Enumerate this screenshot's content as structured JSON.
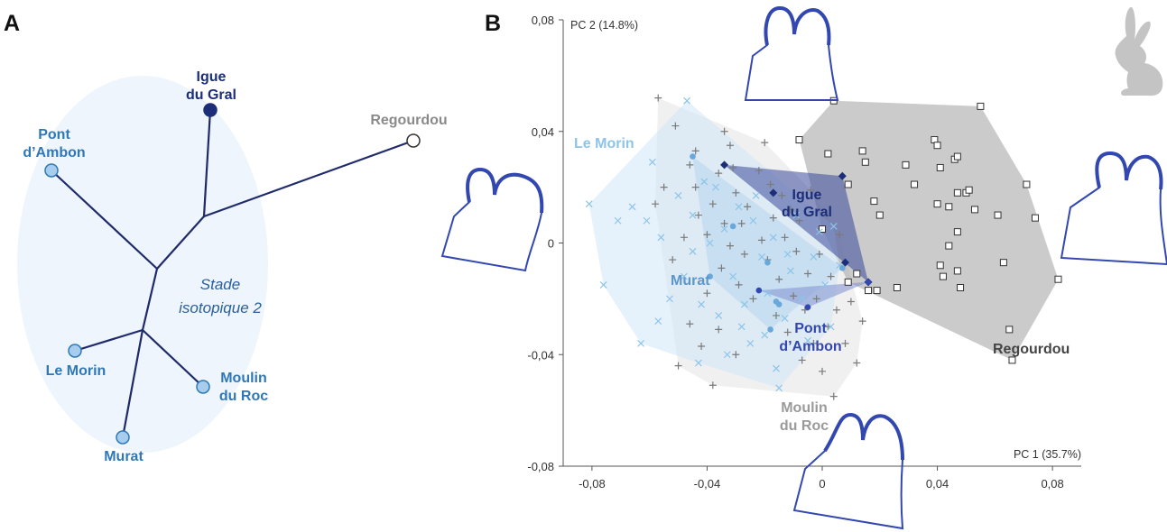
{
  "panel_a": {
    "letter": "A",
    "stage_note_line1": "Stade",
    "stage_note_line2": "isotopique 2",
    "sites": [
      {
        "id": "igue",
        "line1": "Igue",
        "line2": "du Gral",
        "color": "#1c2e78",
        "fill": "#1c2e78"
      },
      {
        "id": "regourdou",
        "line1": "Regourdou",
        "line2": "",
        "color": "#8a8a8a",
        "fill": "#ffffff"
      },
      {
        "id": "pont",
        "line1": "Pont",
        "line2": "d’Ambon",
        "color": "#2f78b8",
        "fill": "#a6cdee"
      },
      {
        "id": "lemorin",
        "line1": "Le Morin",
        "line2": "",
        "color": "#2f78b8",
        "fill": "#a6cdee"
      },
      {
        "id": "moulin",
        "line1": "Moulin",
        "line2": "du Roc",
        "color": "#2f78b8",
        "fill": "#a6cdee"
      },
      {
        "id": "murat",
        "line1": "Murat",
        "line2": "",
        "color": "#2f78b8",
        "fill": "#a6cdee"
      }
    ]
  },
  "panel_b": {
    "letter": "B",
    "icon": "rabbit-silhouette-icon",
    "labels": {
      "le_morin": "Le Morin",
      "igue_1": "Igue",
      "igue_2": "du Gral",
      "murat": "Murat",
      "pont_1": "Pont",
      "pont_2": "d’Ambon",
      "regourdou": "Regourdou",
      "moulin_1": "Moulin",
      "moulin_2": "du Roc"
    }
  },
  "colors": {
    "igue": "#1c2e78",
    "blue": "#2f78b8",
    "light_blue": "#8cc4ea",
    "gray": "#8a8a8a",
    "dark_gray": "#444444",
    "outline": "#3347b0"
  },
  "chart_data": {
    "type": "scatter",
    "title": "",
    "xlabel": "PC 1 (35.7%)",
    "ylabel": "PC 2 (14.8%)",
    "xlim": [
      -0.09,
      0.09
    ],
    "ylim": [
      -0.08,
      0.08
    ],
    "xticks": [
      -0.08,
      -0.04,
      0,
      0.04,
      0.08
    ],
    "xtick_labels": [
      "-0,08",
      "-0,04",
      "0",
      "0,04",
      "0,08"
    ],
    "yticks": [
      -0.08,
      -0.04,
      0,
      0.04,
      0.08
    ],
    "ytick_labels": [
      "-0,08",
      "-0,04",
      "0",
      "0,04",
      "0,08"
    ],
    "grid": false,
    "series": [
      {
        "name": "Regourdou",
        "marker": "square",
        "points": [
          [
            -0.008,
            0.037
          ],
          [
            0.002,
            0.032
          ],
          [
            0.004,
            0.051
          ],
          [
            0.009,
            0.021
          ],
          [
            0.014,
            0.033
          ],
          [
            0.015,
            0.029
          ],
          [
            0.018,
            0.015
          ],
          [
            0.02,
            0.01
          ],
          [
            0.029,
            0.028
          ],
          [
            0.032,
            0.021
          ],
          [
            0.039,
            0.037
          ],
          [
            0.04,
            0.035
          ],
          [
            0.04,
            0.014
          ],
          [
            0.041,
            0.027
          ],
          [
            0.044,
            0.013
          ],
          [
            0.044,
            -0.001
          ],
          [
            0.046,
            0.03
          ],
          [
            0.047,
            0.018
          ],
          [
            0.047,
            0.004
          ],
          [
            0.047,
            0.031
          ],
          [
            0.05,
            0.018
          ],
          [
            0.051,
            0.019
          ],
          [
            0.053,
            0.012
          ],
          [
            0.055,
            0.049
          ],
          [
            0.061,
            0.01
          ],
          [
            0.063,
            -0.007
          ],
          [
            0.065,
            -0.031
          ],
          [
            0.066,
            -0.042
          ],
          [
            0.071,
            0.021
          ],
          [
            0.074,
            0.009
          ],
          [
            0.082,
            -0.013
          ],
          [
            0.009,
            -0.014
          ],
          [
            0.012,
            -0.011
          ],
          [
            0.016,
            -0.017
          ],
          [
            0.019,
            -0.017
          ],
          [
            0.026,
            -0.016
          ],
          [
            0.041,
            -0.008
          ],
          [
            0.042,
            -0.012
          ],
          [
            0.047,
            -0.01
          ],
          [
            0.048,
            -0.016
          ],
          [
            0.0,
            0.005
          ]
        ]
      },
      {
        "name": "Moulin du Roc",
        "marker": "plus",
        "points": [
          [
            -0.057,
            0.052
          ],
          [
            -0.051,
            0.042
          ],
          [
            -0.046,
            0.028
          ],
          [
            -0.044,
            0.033
          ],
          [
            -0.043,
            0.01
          ],
          [
            -0.04,
            0.003
          ],
          [
            -0.038,
            0.014
          ],
          [
            -0.036,
            0.025
          ],
          [
            -0.035,
            -0.009
          ],
          [
            -0.034,
            0.04
          ],
          [
            -0.032,
            0.035
          ],
          [
            -0.031,
            0.027
          ],
          [
            -0.03,
            0.018
          ],
          [
            -0.029,
            -0.015
          ],
          [
            -0.028,
            0.007
          ],
          [
            -0.027,
            -0.004
          ],
          [
            -0.026,
            0.013
          ],
          [
            -0.024,
            -0.02
          ],
          [
            -0.022,
            0.026
          ],
          [
            -0.021,
            0.001
          ],
          [
            -0.02,
            0.036
          ],
          [
            -0.019,
            -0.006
          ],
          [
            -0.018,
            0.021
          ],
          [
            -0.017,
            0.009
          ],
          [
            -0.016,
            -0.026
          ],
          [
            -0.015,
            -0.013
          ],
          [
            -0.014,
            0.017
          ],
          [
            -0.013,
            0.002
          ],
          [
            -0.012,
            -0.032
          ],
          [
            -0.011,
            0.012
          ],
          [
            -0.01,
            -0.019
          ],
          [
            -0.009,
            -0.003
          ],
          [
            -0.008,
            0.008
          ],
          [
            -0.007,
            -0.042
          ],
          [
            -0.006,
            -0.024
          ],
          [
            -0.005,
            -0.011
          ],
          [
            -0.004,
            0.019
          ],
          [
            -0.003,
            -0.036
          ],
          [
            -0.002,
            -0.02
          ],
          [
            -0.001,
            -0.004
          ],
          [
            0.0,
            -0.046
          ],
          [
            0.002,
            -0.03
          ],
          [
            0.003,
            -0.012
          ],
          [
            0.004,
            -0.055
          ],
          [
            0.005,
            -0.024
          ],
          [
            0.006,
            0.003
          ],
          [
            0.008,
            -0.036
          ],
          [
            0.01,
            -0.021
          ],
          [
            0.012,
            -0.043
          ],
          [
            0.014,
            -0.028
          ],
          [
            -0.058,
            0.014
          ],
          [
            -0.055,
            0.02
          ],
          [
            -0.052,
            -0.006
          ],
          [
            -0.05,
            -0.044
          ],
          [
            -0.048,
            0.002
          ],
          [
            -0.046,
            -0.029
          ],
          [
            -0.044,
            0.02
          ],
          [
            -0.042,
            -0.037
          ],
          [
            -0.04,
            -0.018
          ],
          [
            -0.038,
            -0.051
          ],
          [
            -0.036,
            -0.031
          ],
          [
            -0.034,
            0.007
          ],
          [
            -0.032,
            -0.001
          ],
          [
            -0.03,
            -0.04
          ]
        ]
      },
      {
        "name": "Le Morin",
        "marker": "cross",
        "points": [
          [
            -0.081,
            0.014
          ],
          [
            -0.076,
            -0.015
          ],
          [
            -0.071,
            0.008
          ],
          [
            -0.066,
            0.013
          ],
          [
            -0.063,
            -0.036
          ],
          [
            -0.059,
            0.029
          ],
          [
            -0.056,
            0.002
          ],
          [
            -0.053,
            -0.02
          ],
          [
            -0.05,
            0.017
          ],
          [
            -0.047,
            0.051
          ],
          [
            -0.045,
            -0.003
          ],
          [
            -0.043,
            -0.043
          ],
          [
            -0.041,
            0.022
          ],
          [
            -0.039,
            0.0
          ],
          [
            -0.036,
            -0.026
          ],
          [
            -0.034,
            0.005
          ],
          [
            -0.031,
            -0.012
          ],
          [
            -0.029,
            0.013
          ],
          [
            -0.027,
            -0.022
          ],
          [
            -0.025,
            -0.036
          ],
          [
            -0.023,
            0.017
          ],
          [
            -0.021,
            -0.005
          ],
          [
            -0.019,
            -0.018
          ],
          [
            -0.017,
            0.002
          ],
          [
            -0.015,
            -0.052
          ],
          [
            -0.013,
            -0.027
          ],
          [
            -0.011,
            -0.01
          ],
          [
            -0.009,
            0.01
          ],
          [
            -0.007,
            -0.02
          ],
          [
            -0.005,
            -0.035
          ],
          [
            -0.003,
            -0.005
          ],
          [
            -0.001,
            0.004
          ],
          [
            0.001,
            -0.015
          ],
          [
            0.003,
            -0.03
          ],
          [
            0.004,
            0.006
          ],
          [
            0.006,
            -0.008
          ],
          [
            -0.061,
            0.008
          ],
          [
            -0.057,
            -0.028
          ],
          [
            -0.048,
            -0.012
          ],
          [
            -0.045,
            0.01
          ],
          [
            -0.042,
            -0.022
          ],
          [
            -0.037,
            0.02
          ],
          [
            -0.033,
            -0.04
          ],
          [
            -0.028,
            -0.03
          ],
          [
            -0.024,
            0.008
          ],
          [
            -0.02,
            -0.033
          ],
          [
            -0.016,
            -0.045
          ],
          [
            -0.012,
            -0.004
          ]
        ]
      },
      {
        "name": "Igue du Gral",
        "marker": "diamond",
        "points": [
          [
            -0.034,
            0.028
          ],
          [
            -0.017,
            0.018
          ],
          [
            0.007,
            0.024
          ],
          [
            0.008,
            -0.007
          ],
          [
            0.016,
            -0.014
          ]
        ]
      },
      {
        "name": "Murat",
        "marker": "circle",
        "points": [
          [
            -0.045,
            0.031
          ],
          [
            -0.039,
            -0.012
          ],
          [
            -0.031,
            0.006
          ],
          [
            -0.019,
            -0.007
          ],
          [
            -0.018,
            -0.031
          ],
          [
            -0.016,
            -0.021
          ],
          [
            -0.015,
            -0.022
          ],
          [
            0.007,
            -0.009
          ]
        ]
      },
      {
        "name": "Pont d’Ambon",
        "marker": "circle",
        "points": [
          [
            -0.022,
            -0.017
          ],
          [
            -0.005,
            -0.023
          ],
          [
            0.016,
            -0.014
          ]
        ]
      }
    ]
  }
}
